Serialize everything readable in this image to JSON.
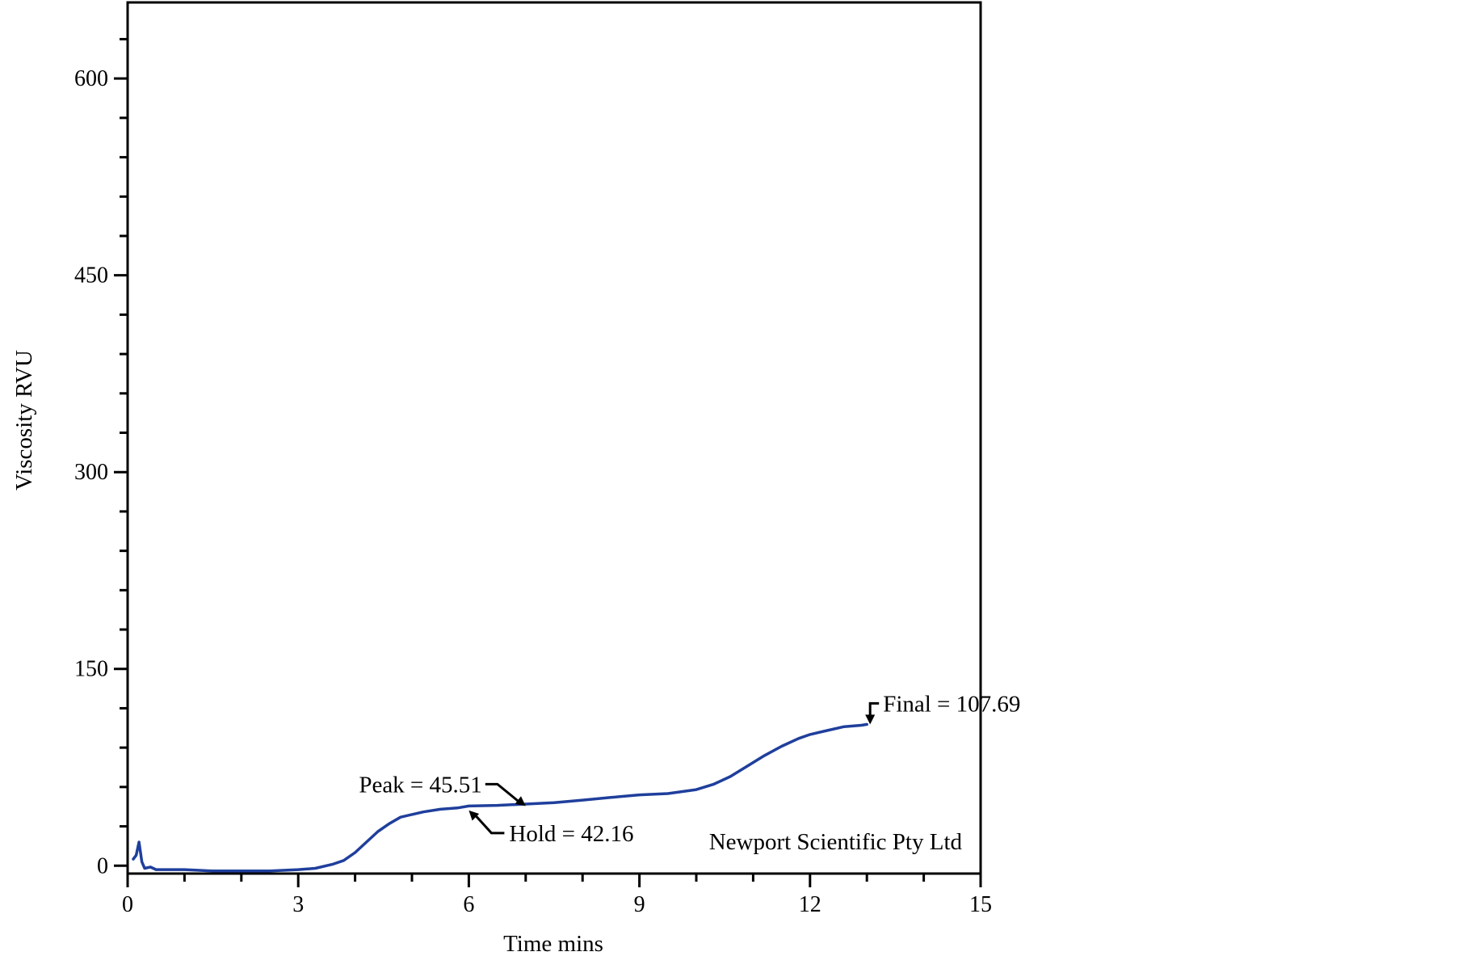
{
  "chart_data": {
    "type": "line",
    "title": "",
    "xlabel": "Time mins",
    "ylabel": "Viscosity RVU",
    "xlim": [
      0,
      15
    ],
    "ylim": [
      -6,
      658
    ],
    "x_ticks": [
      0,
      3,
      6,
      9,
      12,
      15
    ],
    "x_tick_labels": [
      "0",
      "3",
      "6",
      "9",
      "12",
      "15"
    ],
    "y_ticks": [
      0,
      150,
      300,
      450,
      600
    ],
    "y_tick_labels": [
      "0",
      "150",
      "300",
      "450",
      "600"
    ],
    "grid": false,
    "line_color": "#1f3f9c",
    "series": [
      {
        "x": [
          0.1,
          0.15,
          0.2,
          0.25,
          0.3,
          0.4,
          0.5,
          1.0,
          1.5,
          2.0,
          2.5,
          3.0,
          3.3,
          3.6,
          3.8,
          4.0,
          4.2,
          4.4,
          4.6,
          4.8,
          5.0,
          5.2,
          5.5,
          5.8,
          6.0,
          6.5,
          7.0,
          7.5,
          8.0,
          8.5,
          9.0,
          9.5,
          10.0,
          10.3,
          10.6,
          10.9,
          11.2,
          11.5,
          11.8,
          12.0,
          12.3,
          12.6,
          12.9,
          13.0
        ],
        "y": [
          5,
          8,
          18,
          3,
          -2,
          -1,
          -3,
          -3,
          -4,
          -4,
          -4,
          -3,
          -2,
          1,
          4,
          10,
          18,
          26,
          32,
          37,
          39,
          41,
          43,
          44,
          45.5,
          46,
          47,
          48,
          50,
          52,
          54,
          55,
          58,
          62,
          68,
          76,
          84,
          91,
          97,
          100,
          103,
          106,
          107,
          107.69
        ]
      }
    ],
    "annotations": [
      {
        "text": "Peak = 45.51",
        "x": 7.0,
        "y": 45.51
      },
      {
        "text": "Hold = 42.16",
        "x": 6.0,
        "y": 42.16
      },
      {
        "text": "Final = 107.69",
        "x": 13.0,
        "y": 107.69
      }
    ],
    "watermark": "Newport Scientific Pty Ltd"
  }
}
